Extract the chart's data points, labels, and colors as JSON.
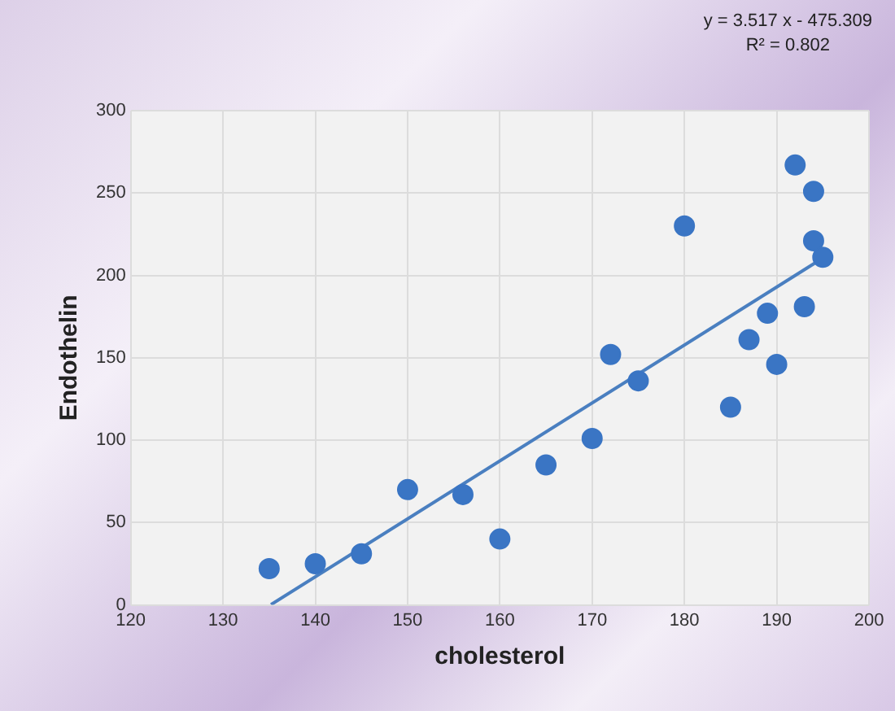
{
  "chart_data": {
    "type": "scatter",
    "xlabel": "cholesterol",
    "ylabel": "Endothelin",
    "annotations": [
      "y = 3.517 x - 475.309",
      "R² = 0.802"
    ],
    "series": [
      {
        "color": "#3a75c4",
        "marker": "circle",
        "x": [
          135,
          140,
          145,
          150,
          156,
          160,
          165,
          170,
          172,
          175,
          180,
          185,
          187,
          189,
          190,
          192,
          193,
          194,
          194,
          195
        ],
        "values": [
          22,
          25,
          31,
          70,
          67,
          40,
          85,
          101,
          152,
          136,
          230,
          120,
          161,
          177,
          146,
          267,
          181,
          251,
          221,
          211
        ]
      },
      {
        "type": "line",
        "color": "#4a7fc0",
        "marker": "none",
        "x": [
          135.2,
          195
        ],
        "values": [
          0.2,
          210.5
        ]
      }
    ],
    "xlim": [
      120,
      200
    ],
    "xticks": [
      120,
      130,
      140,
      150,
      160,
      170,
      180,
      190,
      200
    ],
    "ylim": [
      0,
      300
    ],
    "yticks": [
      0,
      50,
      100,
      150,
      200,
      250,
      300
    ],
    "grid": true,
    "legend": false
  }
}
